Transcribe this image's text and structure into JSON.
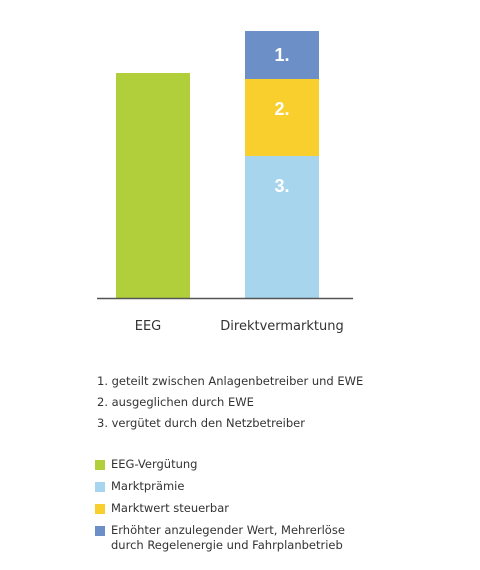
{
  "chart_data": {
    "type": "bar",
    "stacked": true,
    "categories": [
      "EEG",
      "Direktvermarktung"
    ],
    "ylim": [
      0,
      270
    ],
    "grid": false,
    "legend_position": "bottom",
    "stacks": [
      {
        "category": "EEG",
        "segments": [
          {
            "key": "eeg",
            "value": 225,
            "color": "#b1cf3b",
            "label": ""
          }
        ]
      },
      {
        "category": "Direktvermarktung",
        "segments": [
          {
            "key": "marktpraemie",
            "value": 142,
            "color": "#a7d5ee",
            "label": "3."
          },
          {
            "key": "marktwert",
            "value": 77,
            "color": "#f8cf2d",
            "label": "2."
          },
          {
            "key": "erhoeht",
            "value": 48,
            "color": "#6d8fc7",
            "label": "1."
          }
        ]
      }
    ],
    "notes": [
      "1. geteilt zwischen Anlagenbetreiber und EWE",
      "2. ausgeglichen durch EWE",
      "3. vergütet durch den Netzbetreiber"
    ],
    "legend": [
      {
        "label": "EEG-Vergütung",
        "color": "#b1cf3b"
      },
      {
        "label": "Marktprämie",
        "color": "#a7d5ee"
      },
      {
        "label": "Marktwert steuerbar",
        "color": "#f8cf2d"
      },
      {
        "label": "Erhöhter anzulegender Wert, Mehrerlöse\ndurch Regelenergie und Fahrplanbetrieb",
        "color": "#6d8fc7"
      }
    ]
  }
}
